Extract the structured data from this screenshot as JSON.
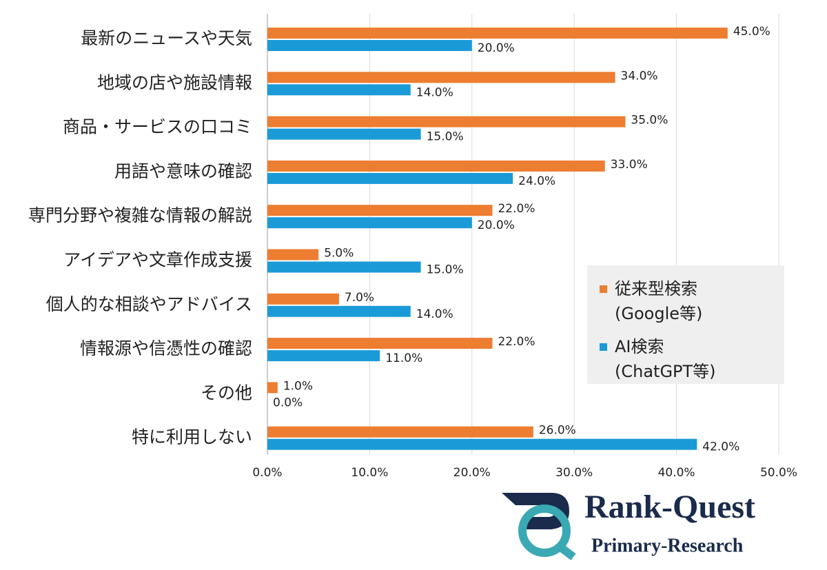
{
  "chart_data": {
    "type": "hbar",
    "categories": [
      "最新のニュースや天気",
      "地域の店や施設情報",
      "商品・サービスの口コミ",
      "用語や意味の確認",
      "専門分野や複雑な情報の解説",
      "アイデアや文章作成支援",
      "個人的な相談やアドバイス",
      "情報源や信憑性の確認",
      "その他",
      "特に利用しない"
    ],
    "series": [
      {
        "name": "従来型検索\n(Google等)",
        "color": "#ed7d31",
        "values": [
          45,
          34,
          35,
          33,
          22,
          5,
          7,
          22,
          1,
          26
        ],
        "value_labels": [
          "45.0%",
          "34.0%",
          "35.0%",
          "33.0%",
          "22.0%",
          "5.0%",
          "7.0%",
          "22.0%",
          "1.0%",
          "26.0%"
        ]
      },
      {
        "name": "AI検索\n(ChatGPT等)",
        "color": "#1b9ad8",
        "values": [
          20,
          14,
          15,
          24,
          20,
          15,
          14,
          11,
          0,
          42
        ],
        "value_labels": [
          "20.0%",
          "14.0%",
          "15.0%",
          "24.0%",
          "20.0%",
          "15.0%",
          "14.0%",
          "11.0%",
          "0.0%",
          "42.0%"
        ]
      }
    ],
    "xlim": [
      0,
      50
    ],
    "xticks": [
      {
        "value": 0,
        "label": "0.0%"
      },
      {
        "value": 10,
        "label": "10.0%"
      },
      {
        "value": 20,
        "label": "20.0%"
      },
      {
        "value": 30,
        "label": "30.0%"
      },
      {
        "value": 40,
        "label": "40.0%"
      },
      {
        "value": 50,
        "label": "50.0%"
      }
    ],
    "grid": true,
    "legend": "right"
  },
  "logo": {
    "title": "Rank-Quest",
    "subtitle": "Primary-Research"
  }
}
